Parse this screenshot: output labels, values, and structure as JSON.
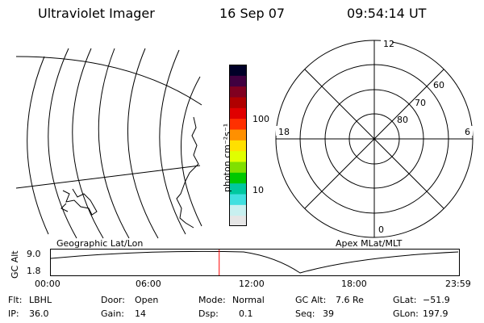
{
  "header": {
    "instrument": "Ultraviolet Imager",
    "date": "16 Sep 07",
    "time": "09:54:14 UT"
  },
  "map_panel": {
    "label": "Geographic Lat/Lon"
  },
  "polar_panel": {
    "label": "Apex MLat/MLT",
    "mlt_labels": [
      "12",
      "18",
      "6",
      "0"
    ],
    "mlat_labels": [
      "60",
      "70",
      "80"
    ]
  },
  "colorbar": {
    "label": "photon cm⁻²s⁻¹",
    "ticks": [
      "100",
      "10"
    ],
    "colors": [
      "#e6e6e6",
      "#c8f0f0",
      "#40e0e0",
      "#00c8a0",
      "#00c800",
      "#80e000",
      "#e0ff00",
      "#ffe000",
      "#ff9000",
      "#ff3000",
      "#e00000",
      "#b00000",
      "#800020",
      "#400040",
      "#000028"
    ]
  },
  "altitude_plot": {
    "ylabel": "GC Alt",
    "y_ticks": [
      "9.0",
      "1.8"
    ],
    "x_ticks": [
      "00:00",
      "06:00",
      "12:00",
      "18:00",
      "23:59"
    ],
    "current_time_marker_hours": 9.9,
    "marker_color": "#ff0000"
  },
  "status": {
    "filter_label": "Flt:",
    "filter_value": "LBHL",
    "ip_label": "IP:",
    "ip_value": "36.0",
    "door_label": "Door:",
    "door_value": "Open",
    "gain_label": "Gain:",
    "gain_value": "14",
    "mode_label": "Mode:",
    "mode_value": "Normal",
    "dsp_label": "Dsp:",
    "dsp_value": "0.1",
    "gcalt_label": "GC Alt:",
    "gcalt_value": "7.6 Re",
    "seq_label": "Seq:",
    "seq_value": "39",
    "glat_label": "GLat:",
    "glat_value": "−51.9",
    "glon_label": "GLon:",
    "glon_value": "197.9"
  }
}
